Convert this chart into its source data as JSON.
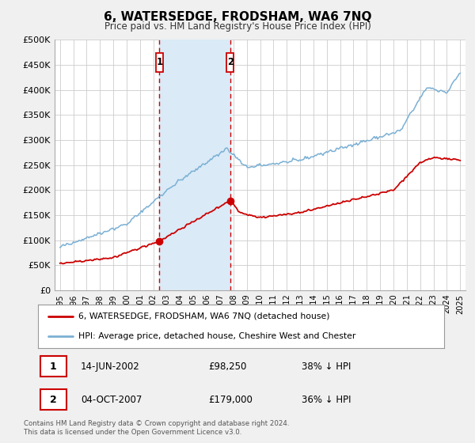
{
  "title": "6, WATERSEDGE, FRODSHAM, WA6 7NQ",
  "subtitle": "Price paid vs. HM Land Registry's House Price Index (HPI)",
  "ylim": [
    0,
    500000
  ],
  "yticks": [
    0,
    50000,
    100000,
    150000,
    200000,
    250000,
    300000,
    350000,
    400000,
    450000,
    500000
  ],
  "ytick_labels": [
    "£0",
    "£50K",
    "£100K",
    "£150K",
    "£200K",
    "£250K",
    "£300K",
    "£350K",
    "£400K",
    "£450K",
    "£500K"
  ],
  "hpi_color": "#7ab0d4",
  "price_color": "#cc0000",
  "sale1_date_num": 2002.45,
  "sale1_price": 98250,
  "sale2_date_num": 2007.76,
  "sale2_price": 179000,
  "sale1_date_str": "14-JUN-2002",
  "sale1_pct": "38% ↓ HPI",
  "sale2_date_str": "04-OCT-2007",
  "sale2_pct": "36% ↓ HPI",
  "legend_line1": "6, WATERSEDGE, FRODSHAM, WA6 7NQ (detached house)",
  "legend_line2": "HPI: Average price, detached house, Cheshire West and Chester",
  "footer1": "Contains HM Land Registry data © Crown copyright and database right 2024.",
  "footer2": "This data is licensed under the Open Government Licence v3.0.",
  "bg_color": "#f0f0f0",
  "plot_bg_color": "#ffffff",
  "shade_color": "#daeaf7"
}
